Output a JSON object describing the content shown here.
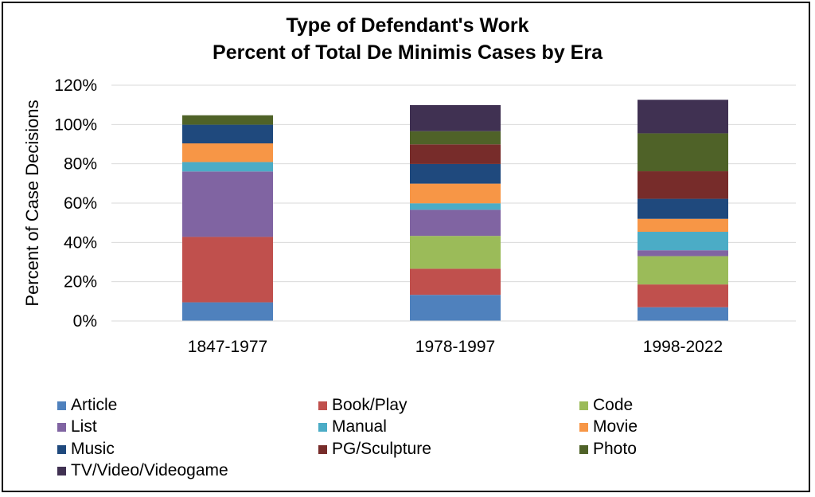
{
  "chart_data": {
    "type": "bar",
    "stacked": true,
    "title": "Type of Defendant's Work",
    "subtitle": "Percent of Total De Minimis Cases by Era",
    "xlabel": "",
    "ylabel": "Percent of Case Decisions",
    "ylim": [
      0,
      120
    ],
    "yticks": [
      "0%",
      "20%",
      "40%",
      "60%",
      "80%",
      "100%",
      "120%"
    ],
    "ytick_values": [
      0,
      20,
      40,
      60,
      80,
      100,
      120
    ],
    "grid": true,
    "legend_position": "bottom",
    "categories": [
      "1847-1977",
      "1978-1997",
      "1998-2022"
    ],
    "series": [
      {
        "name": "Article",
        "color": "#4F81BD",
        "values": [
          9.5,
          13.3,
          7.0
        ]
      },
      {
        "name": "Book/Play",
        "color": "#C0504D",
        "values": [
          33.3,
          13.3,
          11.6
        ]
      },
      {
        "name": "Code",
        "color": "#9BBB59",
        "values": [
          0,
          16.7,
          14.4
        ]
      },
      {
        "name": "List",
        "color": "#8064A2",
        "values": [
          33.3,
          13.3,
          3.0
        ]
      },
      {
        "name": "Manual",
        "color": "#4BACC6",
        "values": [
          4.8,
          3.3,
          9.4
        ]
      },
      {
        "name": "Movie",
        "color": "#F79646",
        "values": [
          9.5,
          10.0,
          6.6
        ]
      },
      {
        "name": "Music",
        "color": "#1F497D",
        "values": [
          9.5,
          10.0,
          10.2
        ]
      },
      {
        "name": "PG/Sculpture",
        "color": "#772C2A",
        "values": [
          0,
          10.0,
          14.0
        ]
      },
      {
        "name": "Photo",
        "color": "#4F6228",
        "values": [
          4.8,
          6.7,
          19.3
        ]
      },
      {
        "name": "TV/Video/Videogame",
        "color": "#403152",
        "values": [
          0,
          13.3,
          17.1
        ]
      }
    ]
  }
}
